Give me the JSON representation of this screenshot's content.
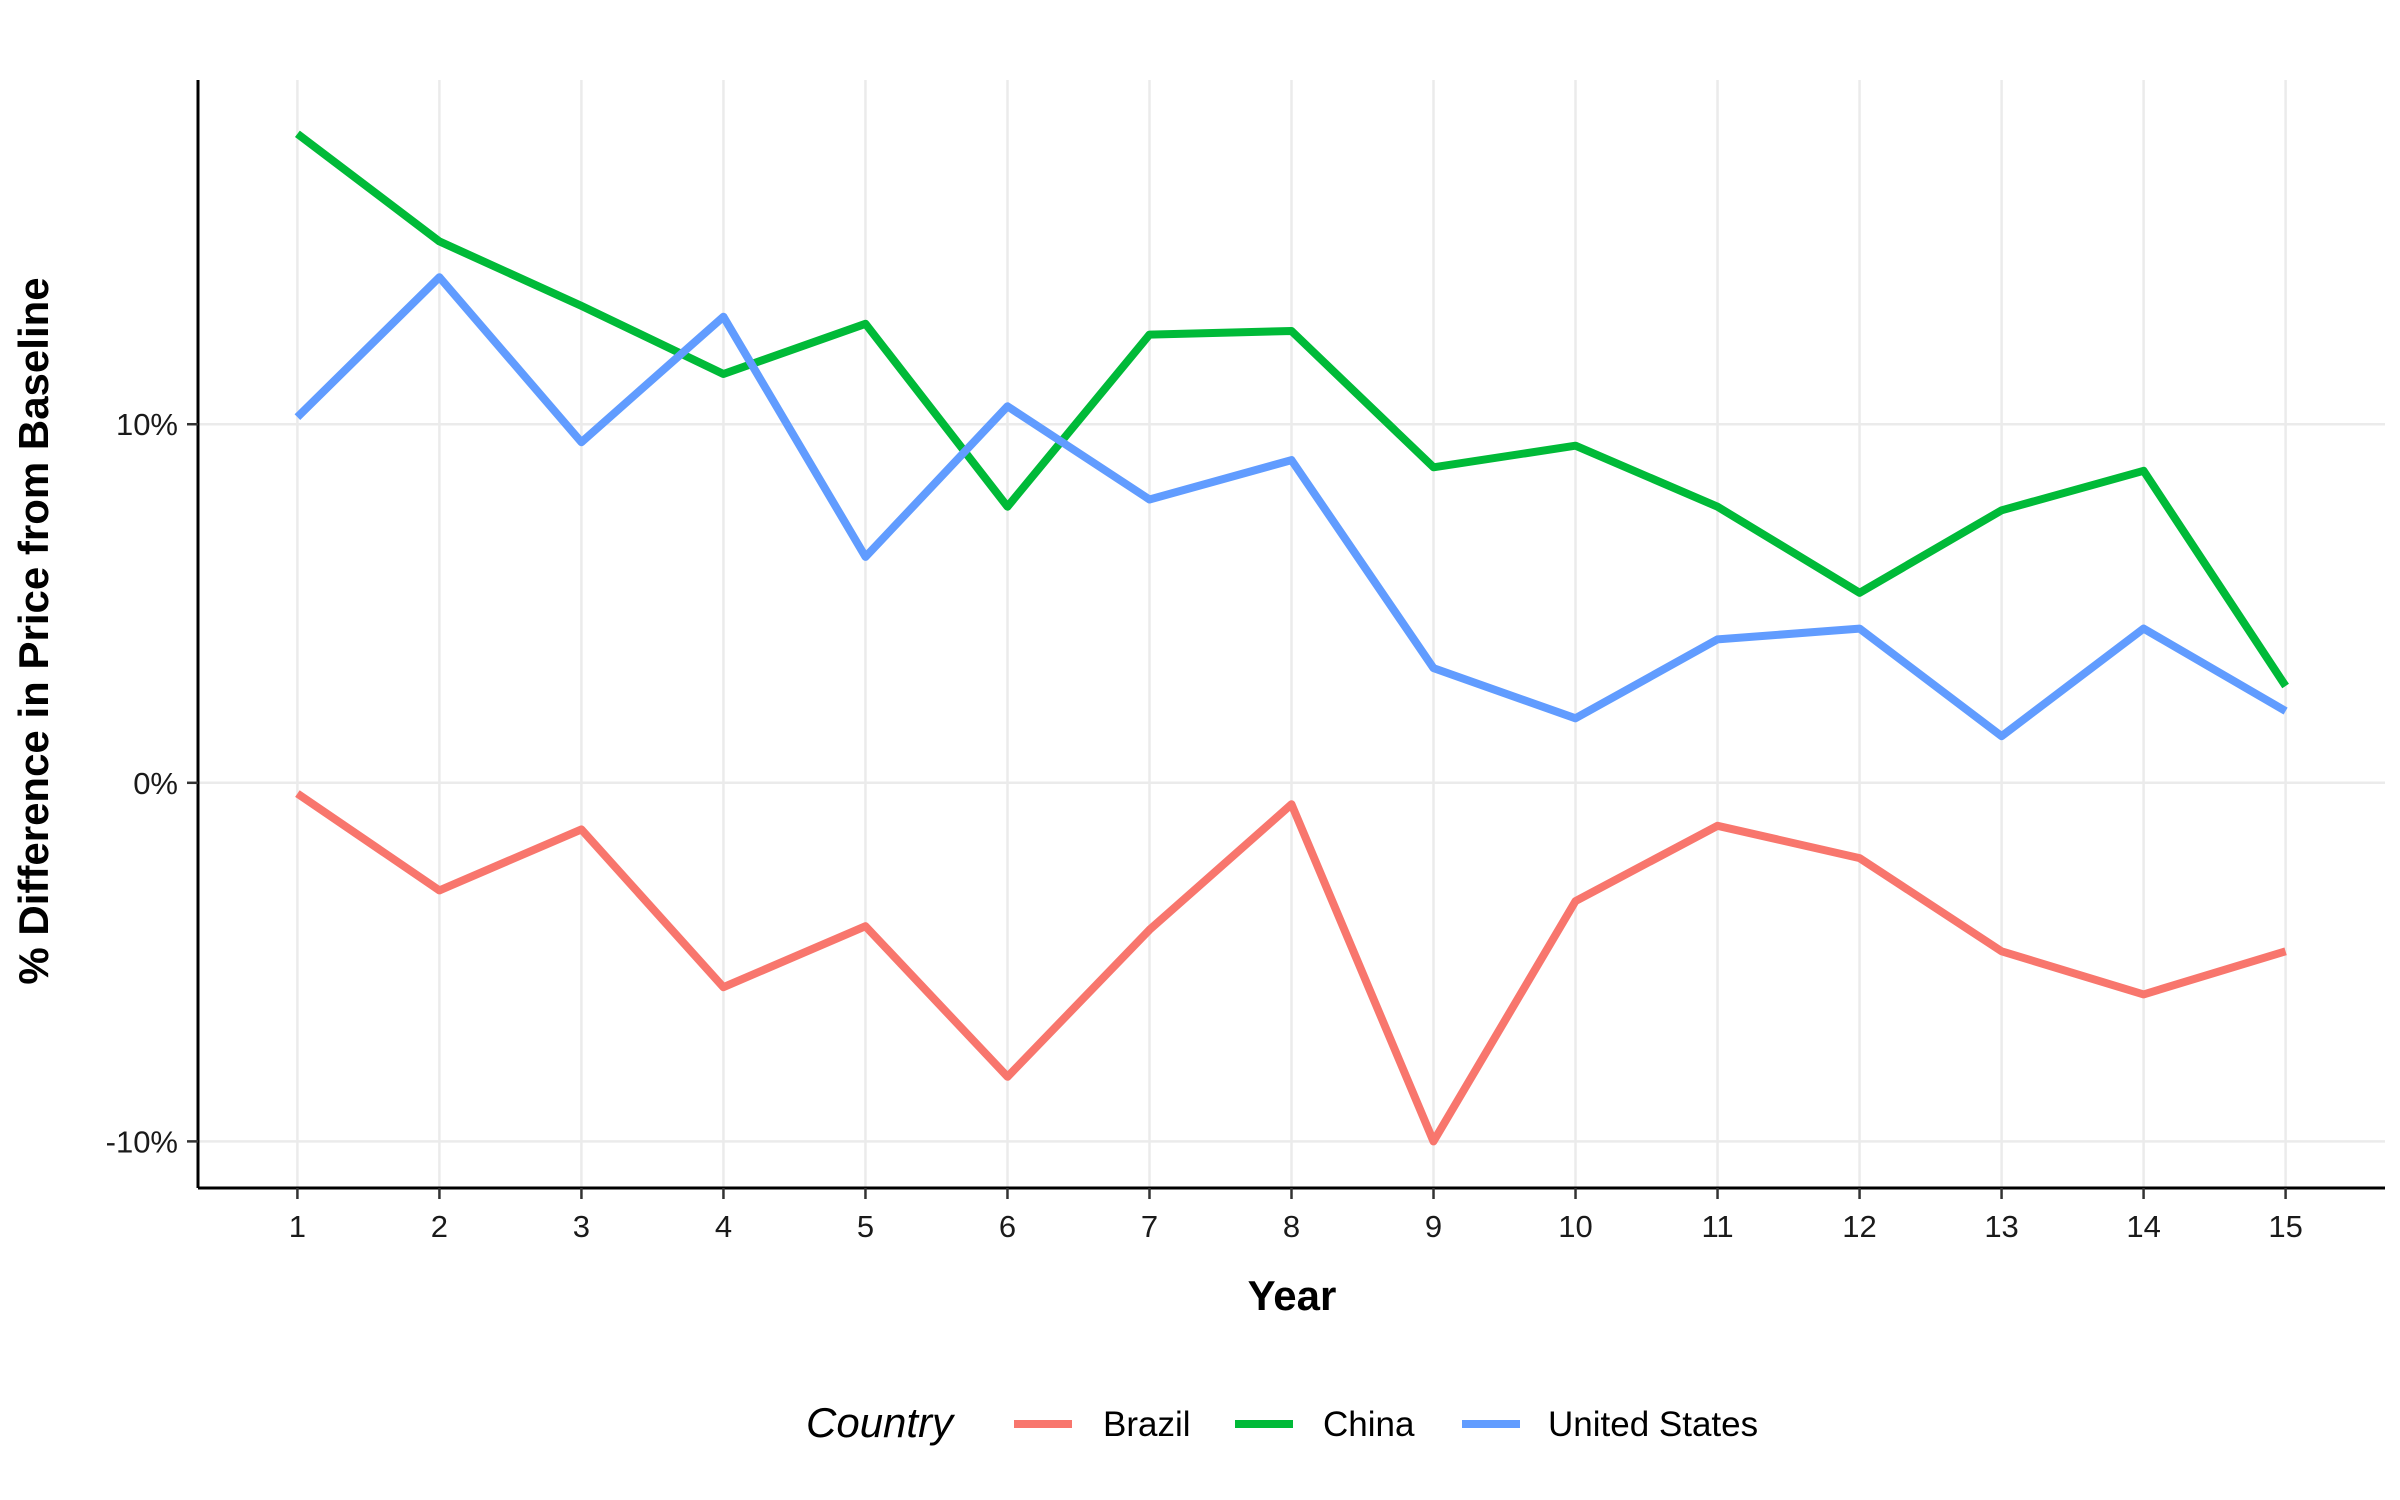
{
  "chart_data": {
    "type": "line",
    "title": "",
    "xlabel": "Year",
    "ylabel": "% Difference in Price from Baseline",
    "x": [
      1,
      2,
      3,
      4,
      5,
      6,
      7,
      8,
      9,
      10,
      11,
      12,
      13,
      14,
      15
    ],
    "x_tick_labels": [
      "1",
      "2",
      "3",
      "4",
      "5",
      "6",
      "7",
      "8",
      "9",
      "10",
      "11",
      "12",
      "13",
      "14",
      "15"
    ],
    "y_ticks": [
      -10,
      0,
      10
    ],
    "y_tick_labels": [
      "-10%",
      "0%",
      "10%"
    ],
    "ylim": [
      -11.3,
      19.6
    ],
    "xlim": [
      0.3,
      15.7
    ],
    "grid": true,
    "legend_title": "Country",
    "legend_position": "bottom",
    "series": [
      {
        "name": "Brazil",
        "color": "#F8766D",
        "values": [
          -0.3,
          -3.0,
          -1.3,
          -5.7,
          -4.0,
          -8.2,
          -4.1,
          -0.6,
          -10.0,
          -3.3,
          -1.2,
          -2.1,
          -4.7,
          -5.9,
          -4.7
        ]
      },
      {
        "name": "China",
        "color": "#00BA38",
        "values": [
          18.1,
          15.1,
          13.3,
          11.4,
          12.8,
          7.7,
          12.5,
          12.6,
          8.8,
          9.4,
          7.7,
          5.3,
          7.6,
          8.7,
          2.7
        ]
      },
      {
        "name": "United States",
        "color": "#619CFF",
        "values": [
          10.2,
          14.1,
          9.5,
          13.0,
          6.3,
          10.5,
          7.9,
          9.0,
          3.2,
          1.8,
          4.0,
          4.3,
          1.3,
          4.3,
          2.0
        ]
      }
    ]
  }
}
